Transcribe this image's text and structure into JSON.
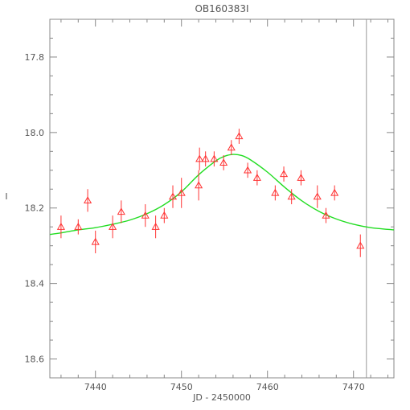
{
  "chart_data": {
    "type": "scatter",
    "title": "OB160383I",
    "xlabel": "JD - 2450000",
    "ylabel": "I",
    "xlim": [
      7434.7,
      7474.7
    ],
    "ylim": [
      18.65,
      17.7
    ],
    "y_inverted": true,
    "xticks": [
      7440,
      7450,
      7460,
      7470
    ],
    "xtick_labels": [
      "7440",
      "7450",
      "7460",
      "7470"
    ],
    "yticks": [
      17.8,
      18.0,
      18.2,
      18.4,
      18.6
    ],
    "ytick_labels": [
      "17.8",
      "18.0",
      "18.2",
      "18.4",
      "18.6"
    ],
    "grid": false,
    "legend": "none",
    "vertical_marker_x": 7471.5,
    "colors": {
      "points": "#ff3333",
      "model": "#22dd22",
      "axis": "#888888",
      "marker_line": "#999999"
    },
    "series": [
      {
        "kind": "points",
        "x": [
          7436.0,
          7438.0,
          7439.1,
          7440.0,
          7442.0,
          7443.0,
          7445.8,
          7447.0,
          7448.0,
          7449.0,
          7450.0,
          7452.0,
          7452.1,
          7452.8,
          7453.8,
          7454.9,
          7455.8,
          7456.7,
          7457.7,
          7458.8,
          7460.9,
          7461.9,
          7462.8,
          7463.9,
          7465.8,
          7466.8,
          7467.8,
          7470.8
        ],
        "y": [
          18.25,
          18.25,
          18.18,
          18.29,
          18.25,
          18.21,
          18.22,
          18.25,
          18.22,
          18.17,
          18.16,
          18.14,
          18.07,
          18.07,
          18.07,
          18.08,
          18.04,
          18.01,
          18.1,
          18.12,
          18.16,
          18.11,
          18.17,
          18.12,
          18.17,
          18.22,
          18.16,
          18.3
        ],
        "err": [
          0.03,
          0.02,
          0.03,
          0.03,
          0.03,
          0.03,
          0.03,
          0.03,
          0.02,
          0.03,
          0.04,
          0.04,
          0.03,
          0.02,
          0.02,
          0.02,
          0.02,
          0.02,
          0.02,
          0.02,
          0.02,
          0.02,
          0.02,
          0.02,
          0.03,
          0.02,
          0.02,
          0.03
        ]
      },
      {
        "kind": "model_curve",
        "x": [
          7434.7,
          7436,
          7438,
          7440,
          7442,
          7444,
          7446,
          7448,
          7450,
          7452,
          7454,
          7455,
          7456,
          7457,
          7458,
          7460,
          7462,
          7464,
          7466,
          7468,
          7470,
          7472,
          7474.7
        ],
        "y": [
          18.27,
          18.266,
          18.258,
          18.252,
          18.243,
          18.232,
          18.215,
          18.191,
          18.157,
          18.112,
          18.075,
          18.063,
          18.058,
          18.061,
          18.072,
          18.105,
          18.145,
          18.181,
          18.209,
          18.229,
          18.243,
          18.252,
          18.258
        ]
      }
    ]
  }
}
